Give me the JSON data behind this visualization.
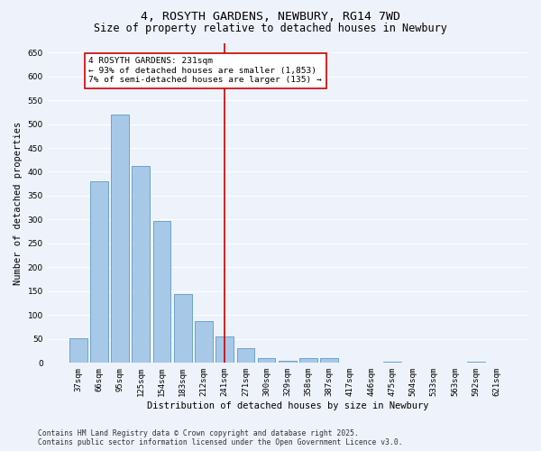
{
  "title": "4, ROSYTH GARDENS, NEWBURY, RG14 7WD",
  "subtitle": "Size of property relative to detached houses in Newbury",
  "xlabel": "Distribution of detached houses by size in Newbury",
  "ylabel": "Number of detached properties",
  "categories": [
    "37sqm",
    "66sqm",
    "95sqm",
    "125sqm",
    "154sqm",
    "183sqm",
    "212sqm",
    "241sqm",
    "271sqm",
    "300sqm",
    "329sqm",
    "358sqm",
    "387sqm",
    "417sqm",
    "446sqm",
    "475sqm",
    "504sqm",
    "533sqm",
    "563sqm",
    "592sqm",
    "621sqm"
  ],
  "values": [
    52,
    380,
    520,
    413,
    297,
    145,
    87,
    55,
    30,
    10,
    5,
    10,
    10,
    0,
    0,
    3,
    0,
    0,
    0,
    3,
    0
  ],
  "bar_color": "#a8c8e8",
  "bar_edge_color": "#5a9bc8",
  "background_color": "#eef2fa",
  "grid_color": "#ffffff",
  "vline_x_index": 7,
  "vline_color": "#cc0000",
  "annotation_title": "4 ROSYTH GARDENS: 231sqm",
  "annotation_line1": "← 93% of detached houses are smaller (1,853)",
  "annotation_line2": "7% of semi-detached houses are larger (135) →",
  "annotation_box_color": "#cc0000",
  "ylim": [
    0,
    670
  ],
  "yticks": [
    0,
    50,
    100,
    150,
    200,
    250,
    300,
    350,
    400,
    450,
    500,
    550,
    600,
    650
  ],
  "footer_line1": "Contains HM Land Registry data © Crown copyright and database right 2025.",
  "footer_line2": "Contains public sector information licensed under the Open Government Licence v3.0.",
  "title_fontsize": 9.5,
  "subtitle_fontsize": 8.5,
  "axis_label_fontsize": 7.5,
  "tick_fontsize": 6.5,
  "annotation_fontsize": 6.8,
  "footer_fontsize": 5.8
}
